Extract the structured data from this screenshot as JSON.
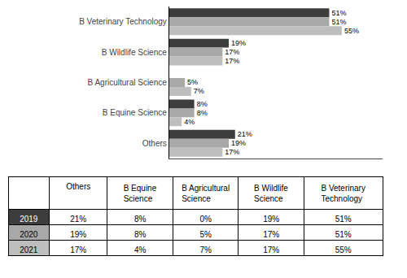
{
  "chart_data": {
    "type": "bar",
    "orientation": "horizontal",
    "categories": [
      "B Veterinary Technology",
      "B Wildlife Science",
      "B Agricultural Science",
      "B Equine Science",
      "Others"
    ],
    "series": [
      {
        "name": "2019",
        "color": "#3d3d3d",
        "values": [
          51,
          19,
          0,
          8,
          21
        ],
        "value_labels": [
          "51%",
          "19%",
          null,
          "8%",
          "21%"
        ]
      },
      {
        "name": "2020",
        "color": "#a8a8a8",
        "values": [
          51,
          17,
          5,
          8,
          19
        ],
        "value_labels": [
          "51%",
          "17%",
          "5%",
          "8%",
          "19%"
        ]
      },
      {
        "name": "2021",
        "color": "#bebebe",
        "values": [
          55,
          17,
          7,
          4,
          17
        ],
        "value_labels": [
          "55%",
          "17%",
          "7%",
          "4%",
          "17%"
        ]
      }
    ],
    "xlim": [
      0,
      68
    ],
    "xticks": [],
    "data_labels": true,
    "tick_labels": "y",
    "grid": false,
    "table": {
      "headers": [
        "",
        "Others",
        "B Equine Science",
        "B Agricultural\nScience",
        "B Wildlife Science",
        "B Veterinary\nTechnology"
      ],
      "rows": [
        [
          "2019",
          "21%",
          "8%",
          "0%",
          "19%",
          "51%"
        ],
        [
          "2020",
          "19%",
          "8%",
          "5%",
          "17%",
          "51%"
        ],
        [
          "2021",
          "17%",
          "4%",
          "7%",
          "17%",
          "55%"
        ]
      ]
    }
  }
}
